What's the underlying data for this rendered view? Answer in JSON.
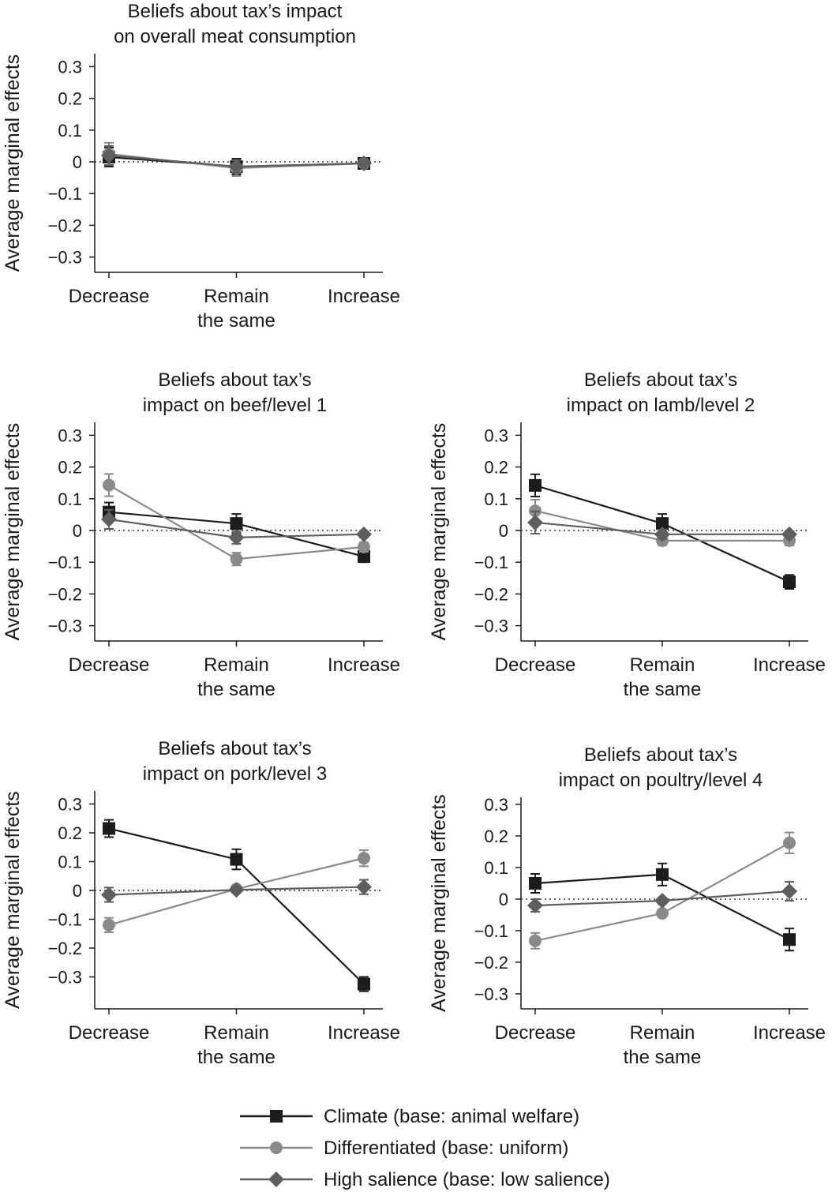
{
  "colors": {
    "climate": "#1c1c1c",
    "differentiated": "#8a8a8a",
    "salience": "#5e5e5e",
    "axis": "#1a1a1a",
    "zero_line": "#333333"
  },
  "legend": [
    {
      "series": "Climate",
      "label": "Climate (base: animal welfare)",
      "marker": "square"
    },
    {
      "series": "Differentiated",
      "label": "Differentiated (base: uniform)",
      "marker": "circle"
    },
    {
      "series": "High salience",
      "label": "High salience (base: low salience)",
      "marker": "diamond"
    }
  ],
  "chart_data": [
    {
      "type": "line",
      "title": [
        "Beliefs about tax’s impact",
        "on overall meat consumption"
      ],
      "ylabel": "Average marginal effects",
      "ylim": [
        -0.33,
        0.33
      ],
      "yticks": [
        0.3,
        0.2,
        0.1,
        0,
        -0.1,
        -0.2,
        -0.3
      ],
      "ytick_labels": [
        "0.3",
        "0.2",
        "0.1",
        "0",
        "−0.1",
        "−0.2",
        "−0.3"
      ],
      "categories": [
        [
          "Decrease"
        ],
        [
          "Remain",
          "the same"
        ],
        [
          "Increase"
        ]
      ],
      "zero_line": "dotted",
      "series": [
        {
          "key": "Climate",
          "marker": "square",
          "values": [
            0.015,
            -0.015,
            -0.005
          ],
          "err": [
            0.03,
            0.025,
            0.008
          ]
        },
        {
          "key": "Differentiated",
          "marker": "circle",
          "values": [
            0.025,
            -0.02,
            -0.005
          ],
          "err": [
            0.035,
            0.025,
            0.008
          ]
        },
        {
          "key": "High salience",
          "marker": "diamond",
          "values": [
            0.02,
            -0.015,
            -0.005
          ],
          "err": [
            0.03,
            0.02,
            0.008
          ]
        }
      ]
    },
    {
      "type": "line",
      "title": [
        "Beliefs about tax’s",
        "impact on beef/level 1"
      ],
      "ylabel": "Average marginal effects",
      "ylim": [
        -0.33,
        0.33
      ],
      "yticks": [
        0.3,
        0.2,
        0.1,
        0,
        -0.1,
        -0.2,
        -0.3
      ],
      "ytick_labels": [
        "0.3",
        "0.2",
        "0.1",
        "0",
        "−0.1",
        "−0.2",
        "−0.3"
      ],
      "categories": [
        [
          "Decrease"
        ],
        [
          "Remain",
          "the same"
        ],
        [
          "Increase"
        ]
      ],
      "zero_line": "dotted",
      "series": [
        {
          "key": "Climate",
          "marker": "square",
          "values": [
            0.058,
            0.022,
            -0.082
          ],
          "err": [
            0.03,
            0.03,
            0.018
          ]
        },
        {
          "key": "Differentiated",
          "marker": "circle",
          "values": [
            0.143,
            -0.09,
            -0.052
          ],
          "err": [
            0.035,
            0.02,
            0.015
          ]
        },
        {
          "key": "High salience",
          "marker": "diamond",
          "values": [
            0.035,
            -0.022,
            -0.012
          ],
          "err": [
            0.03,
            0.02,
            0.01
          ]
        }
      ]
    },
    {
      "type": "line",
      "title": [
        "Beliefs about tax’s",
        "impact on lamb/level 2"
      ],
      "ylabel": "Average marginal effects",
      "ylim": [
        -0.33,
        0.33
      ],
      "yticks": [
        0.3,
        0.2,
        0.1,
        0,
        -0.1,
        -0.2,
        -0.3
      ],
      "ytick_labels": [
        "0.3",
        "0.2",
        "0.1",
        "0",
        "−0.1",
        "−0.2",
        "−0.3"
      ],
      "categories": [
        [
          "Decrease"
        ],
        [
          "Remain",
          "the same"
        ],
        [
          "Increase"
        ]
      ],
      "zero_line": "dotted",
      "series": [
        {
          "key": "Climate",
          "marker": "square",
          "values": [
            0.142,
            0.022,
            -0.162
          ],
          "err": [
            0.035,
            0.03,
            0.022
          ]
        },
        {
          "key": "Differentiated",
          "marker": "circle",
          "values": [
            0.062,
            -0.032,
            -0.032
          ],
          "err": [
            0.035,
            0.015,
            0.015
          ]
        },
        {
          "key": "High salience",
          "marker": "diamond",
          "values": [
            0.025,
            -0.012,
            -0.012
          ],
          "err": [
            0.035,
            0.015,
            0.01
          ]
        }
      ]
    },
    {
      "type": "line",
      "title": [
        "Beliefs about tax’s",
        "impact on pork/level 3"
      ],
      "ylabel": "Average marginal effects",
      "ylim": [
        -0.39,
        0.33
      ],
      "yticks": [
        0.3,
        0.2,
        0.1,
        0,
        -0.1,
        -0.2,
        -0.3
      ],
      "ytick_labels": [
        "0.3",
        "0.2",
        "0.1",
        "0",
        "−0.1",
        "−0.2",
        "−0.3"
      ],
      "categories": [
        [
          "Decrease"
        ],
        [
          "Remain",
          "the same"
        ],
        [
          "Increase"
        ]
      ],
      "zero_line": "dotted",
      "series": [
        {
          "key": "Climate",
          "marker": "square",
          "values": [
            0.215,
            0.108,
            -0.325
          ],
          "err": [
            0.03,
            0.035,
            0.025
          ]
        },
        {
          "key": "Differentiated",
          "marker": "circle",
          "values": [
            -0.12,
            0.005,
            0.112
          ],
          "err": [
            0.025,
            0.01,
            0.028
          ]
        },
        {
          "key": "High salience",
          "marker": "diamond",
          "values": [
            -0.015,
            0.002,
            0.012
          ],
          "err": [
            0.025,
            0.01,
            0.025
          ]
        }
      ]
    },
    {
      "type": "line",
      "title": [
        "Beliefs about tax’s",
        "impact on poultry/level 4"
      ],
      "ylabel": "Average marginal effects",
      "ylim": [
        -0.35,
        0.33
      ],
      "yticks": [
        0.3,
        0.2,
        0.1,
        0,
        -0.1,
        -0.2,
        -0.3
      ],
      "ytick_labels": [
        "0.3",
        "0.2",
        "0.1",
        "0",
        "−0.1",
        "−0.2",
        "−0.3"
      ],
      "categories": [
        [
          "Decrease"
        ],
        [
          "Remain",
          "the same"
        ],
        [
          "Increase"
        ]
      ],
      "zero_line": "dotted",
      "series": [
        {
          "key": "Climate",
          "marker": "square",
          "values": [
            0.05,
            0.078,
            -0.128
          ],
          "err": [
            0.03,
            0.035,
            0.035
          ]
        },
        {
          "key": "Differentiated",
          "marker": "circle",
          "values": [
            -0.132,
            -0.045,
            0.178
          ],
          "err": [
            0.025,
            0.01,
            0.033
          ]
        },
        {
          "key": "High salience",
          "marker": "diamond",
          "values": [
            -0.02,
            -0.005,
            0.025
          ],
          "err": [
            0.02,
            0.01,
            0.03
          ]
        }
      ]
    }
  ]
}
